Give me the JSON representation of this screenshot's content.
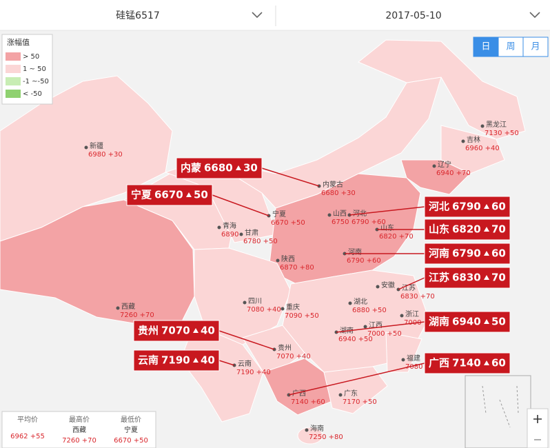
{
  "header": {
    "product": "硅锰6517",
    "date": "2017-05-10"
  },
  "tabs": [
    "日",
    "周",
    "月"
  ],
  "legend": {
    "title": "涨幅值",
    "items": [
      "> 50",
      "1 ~ 50",
      "-1 ~-50",
      "< -50"
    ]
  },
  "provinces": [
    {
      "name": "新疆",
      "value": "6980 +30"
    },
    {
      "name": "西藏",
      "value": "7260 +70"
    },
    {
      "name": "青海",
      "value": "6890"
    },
    {
      "name": "甘肃",
      "value": "6780 +50"
    },
    {
      "name": "宁夏",
      "value": "6670 +50"
    },
    {
      "name": "内蒙古",
      "value": "6680 +30"
    },
    {
      "name": "黑龙江",
      "value": "7130 +50"
    },
    {
      "name": "吉林",
      "value": "6960 +40"
    },
    {
      "name": "辽宁",
      "value": "6940 +70"
    },
    {
      "name": "山西",
      "value": "6750"
    },
    {
      "name": "河北",
      "value": "6790 +60"
    },
    {
      "name": "山东",
      "value": "6820 +70"
    },
    {
      "name": "河南",
      "value": "6790 +60"
    },
    {
      "name": "陕西",
      "value": "6870 +80"
    },
    {
      "name": "四川",
      "value": "7080 +40"
    },
    {
      "name": "重庆",
      "value": "7090 +50"
    },
    {
      "name": "湖北",
      "value": "6880 +50"
    },
    {
      "name": "安徽"
    },
    {
      "name": "江苏",
      "value": "6830 +70"
    },
    {
      "name": "浙江",
      "value": "7000"
    },
    {
      "name": "湖南",
      "value": "6940 +50"
    },
    {
      "name": "江西",
      "value": "7000 +50"
    },
    {
      "name": "福建",
      "value": "7080"
    },
    {
      "name": "贵州",
      "value": "7070 +40"
    },
    {
      "name": "云南",
      "value": "7190 +40"
    },
    {
      "name": "广西",
      "value": "7140 +60"
    },
    {
      "name": "广东",
      "value": "7170 +50"
    },
    {
      "name": "海南",
      "value": "7250 +80"
    }
  ],
  "callouts": [
    {
      "name": "内蒙",
      "price": "6680",
      "change": "30"
    },
    {
      "name": "宁夏",
      "price": "6670",
      "change": "50"
    },
    {
      "name": "河北",
      "price": "6790",
      "change": "60"
    },
    {
      "name": "山东",
      "price": "6820",
      "change": "70"
    },
    {
      "name": "河南",
      "price": "6790",
      "change": "60"
    },
    {
      "name": "江苏",
      "price": "6830",
      "change": "70"
    },
    {
      "name": "湖南",
      "price": "6940",
      "change": "50"
    },
    {
      "name": "贵州",
      "price": "7070",
      "change": "40"
    },
    {
      "name": "云南",
      "price": "7190",
      "change": "40"
    },
    {
      "name": "广西",
      "price": "7140",
      "change": "60"
    }
  ],
  "summary": [
    {
      "title": "平均价",
      "lines": [
        "6962 +55"
      ]
    },
    {
      "title": "最高价",
      "lines": [
        "西藏",
        "7260 +70"
      ]
    },
    {
      "title": "最低价",
      "lines": [
        "宁夏",
        "6670 +50"
      ]
    }
  ]
}
